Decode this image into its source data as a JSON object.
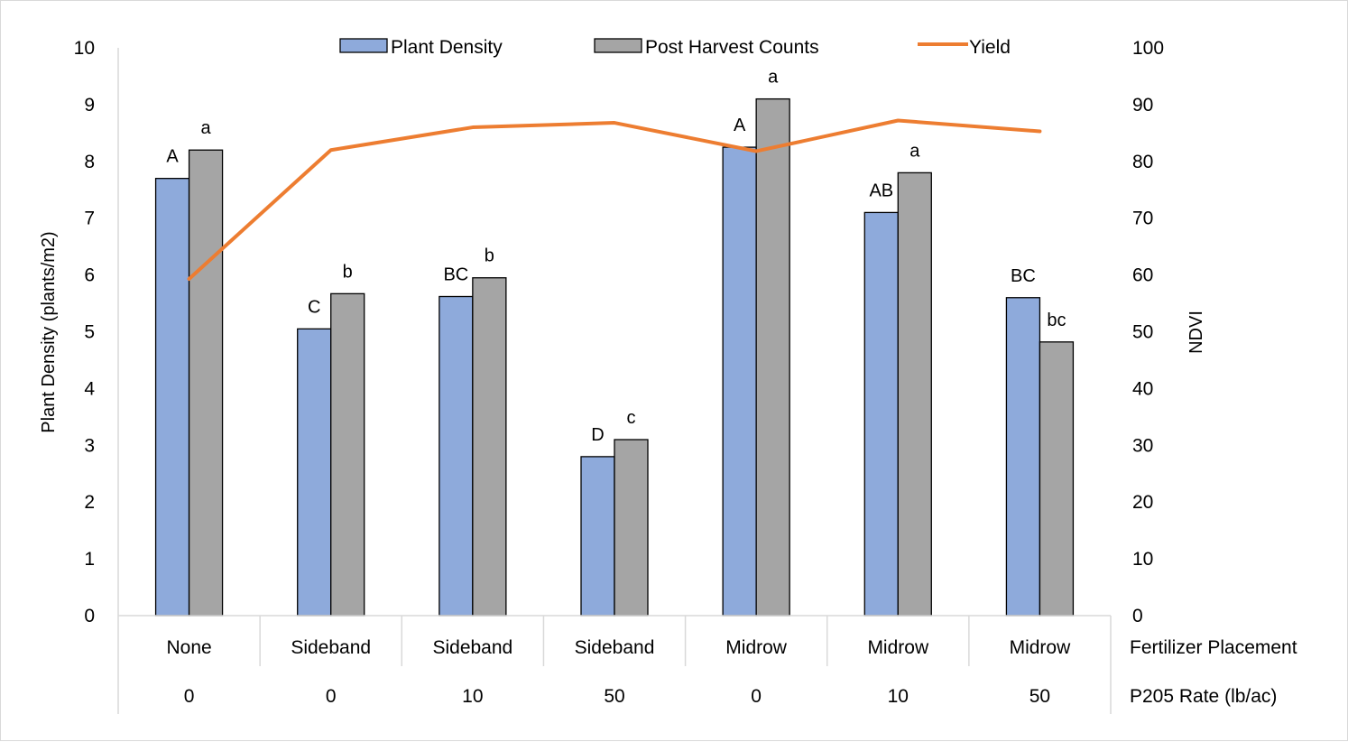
{
  "chart_data": {
    "type": "bar",
    "categories": [
      {
        "placement": "None",
        "rate": "0"
      },
      {
        "placement": "Sideband",
        "rate": "0"
      },
      {
        "placement": "Sideband",
        "rate": "10"
      },
      {
        "placement": "Sideband",
        "rate": "50"
      },
      {
        "placement": "Midrow",
        "rate": "0"
      },
      {
        "placement": "Midrow",
        "rate": "10"
      },
      {
        "placement": "Midrow",
        "rate": "50"
      }
    ],
    "category_level_titles": [
      "Fertilizer Placement",
      "P205 Rate (lb/ac)"
    ],
    "series": [
      {
        "name": "Plant Density",
        "type": "bar",
        "axis": "left",
        "color": "#8eaadb",
        "values": [
          7.7,
          5.05,
          5.62,
          2.8,
          8.25,
          7.1,
          5.6
        ],
        "labels": [
          "A",
          "C",
          "BC",
          "D",
          "A",
          "AB",
          "BC"
        ]
      },
      {
        "name": "Post Harvest Counts",
        "type": "bar",
        "axis": "left",
        "color": "#a5a5a5",
        "values": [
          8.2,
          5.67,
          5.95,
          3.1,
          9.1,
          7.8,
          4.82
        ],
        "labels": [
          "a",
          "b",
          "b",
          "c",
          "a",
          "a",
          "bc"
        ]
      },
      {
        "name": "Yield",
        "type": "line",
        "axis": "right",
        "color": "#ed7d31",
        "values": [
          59.3,
          82.0,
          86.0,
          86.8,
          81.8,
          87.2,
          85.3
        ]
      }
    ],
    "ylabel": "Plant Density (plants/m2)",
    "y2label": "NDVI",
    "ylim": [
      0,
      10
    ],
    "y2lim": [
      0,
      100
    ],
    "yticks": [
      "0",
      "1",
      "2",
      "3",
      "4",
      "5",
      "6",
      "7",
      "8",
      "9",
      "10"
    ],
    "y2ticks": [
      "0",
      "10",
      "20",
      "30",
      "40",
      "50",
      "60",
      "70",
      "80",
      "90",
      "100"
    ],
    "grid": false,
    "legend_position": "top"
  }
}
